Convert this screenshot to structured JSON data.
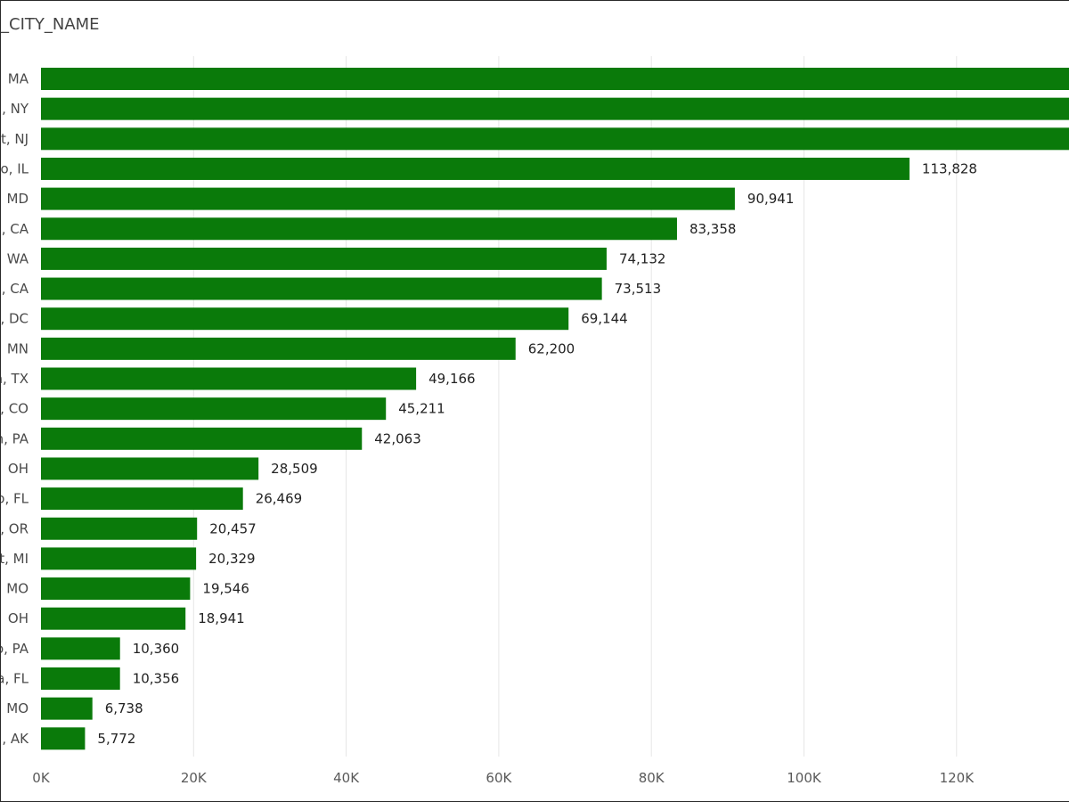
{
  "title": "_CITY_NAME",
  "colors": {
    "bar": "#0a7a0a",
    "grid": "#e6e6e6"
  },
  "chart_data": {
    "type": "bar",
    "orientation": "horizontal",
    "title": "_CITY_NAME",
    "categories": [
      "MA",
      ", NY",
      "t, NJ",
      "o, IL",
      "MD",
      ", CA",
      "WA",
      ", CA",
      ", DC",
      "MN",
      "n, TX",
      ", CO",
      "n, PA",
      "OH",
      "o, FL",
      ", OR",
      "t, MI",
      "MO",
      "OH",
      "o, PA",
      "a, FL",
      "MO",
      ", AK"
    ],
    "values": [
      140000,
      140000,
      140000,
      113828,
      90941,
      83358,
      74132,
      73513,
      69144,
      62200,
      49166,
      45211,
      42063,
      28509,
      26469,
      20457,
      20329,
      19546,
      18941,
      10360,
      10356,
      6738,
      5772
    ],
    "data_labels": [
      "",
      "",
      "",
      "113,828",
      "90,941",
      "83,358",
      "74,132",
      "73,513",
      "69,144",
      "62,200",
      "49,166",
      "45,211",
      "42,063",
      "28,509",
      "26,469",
      "20,457",
      "20,329",
      "19,546",
      "18,941",
      "10,360",
      "10,356",
      "6,738",
      "5,772"
    ],
    "x_ticks": [
      "0K",
      "20K",
      "40K",
      "60K",
      "80K",
      "100K",
      "120K"
    ],
    "x_tick_values": [
      0,
      20000,
      40000,
      60000,
      80000,
      100000,
      120000
    ],
    "xlim": [
      0,
      135000
    ],
    "grid": true,
    "legend": "none"
  }
}
